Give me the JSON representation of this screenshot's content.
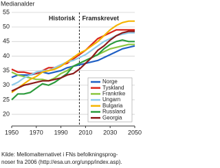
{
  "chart_data": {
    "type": "line",
    "y_label": "Medianalder",
    "annotations": [
      "Historisk",
      "Framskrevet"
    ],
    "divider_x": 2005,
    "caption": [
      "Kilde: Mellomalternativet i FNs befolkningsprog-",
      "noser fra 2006 (http://esa.un.org/unpp/index.asp)."
    ],
    "x": [
      1950,
      1955,
      1960,
      1965,
      1970,
      1975,
      1980,
      1985,
      1990,
      1995,
      2000,
      2005,
      2010,
      2015,
      2020,
      2025,
      2030,
      2035,
      2040,
      2045,
      2050
    ],
    "xlim": [
      1950,
      2050
    ],
    "xticks": [
      1950,
      1970,
      1990,
      2010,
      2030,
      2050
    ],
    "ylim": [
      16,
      55
    ],
    "yticks": [
      20,
      25,
      30,
      35,
      40,
      45,
      50,
      55
    ],
    "grid": true,
    "series": [
      {
        "name": "Norge",
        "color": "#1f5fc4",
        "values": [
          32.7,
          33.5,
          33.5,
          33.5,
          34,
          34.5,
          34,
          34.5,
          35,
          36,
          36.5,
          37,
          37.5,
          38,
          38.5,
          39.5,
          40.5,
          41.5,
          42.5,
          43,
          43.5
        ]
      },
      {
        "name": "Tyskland",
        "color": "#d9261c",
        "values": [
          35.5,
          34.5,
          34.5,
          34,
          34,
          35,
          36,
          36,
          37,
          37.5,
          39,
          40.5,
          42,
          44,
          46,
          47,
          48,
          49,
          49,
          49,
          49
        ]
      },
      {
        "name": "Frankrike",
        "color": "#8cc63f",
        "values": [
          34.5,
          33.5,
          33,
          32.5,
          32,
          32,
          31.5,
          32.5,
          34,
          35,
          36.5,
          37.5,
          38.5,
          39.5,
          40.5,
          41.5,
          42.5,
          43,
          43.5,
          44,
          44
        ]
      },
      {
        "name": "Ungarn",
        "color": "#8fcbea",
        "values": [
          30,
          31,
          32.5,
          33.5,
          34.5,
          35,
          35,
          36,
          37,
          38,
          38.5,
          39.5,
          40.5,
          42,
          43.5,
          45,
          46,
          47,
          47.5,
          48,
          48
        ]
      },
      {
        "name": "Bulgaria",
        "color": "#f5b400",
        "values": [
          27.5,
          29,
          30.5,
          32,
          33,
          34.5,
          35,
          35.5,
          36.5,
          38,
          39.5,
          41,
          42,
          43.5,
          45,
          47,
          49,
          50.5,
          51.5,
          52,
          52
        ]
      },
      {
        "name": "Russland",
        "color": "#2c9b3c",
        "values": [
          25,
          27,
          27,
          27.5,
          29,
          30.5,
          30,
          31,
          32.5,
          34,
          36.5,
          37.5,
          38.5,
          39.5,
          40.5,
          42.5,
          44,
          45,
          45.5,
          45,
          45
        ]
      },
      {
        "name": "Georgia",
        "color": "#8b1a1a",
        "values": [
          28,
          29,
          30,
          30.5,
          31,
          31.5,
          31.5,
          32,
          32.5,
          33.5,
          34,
          35.5,
          37.5,
          39.5,
          42,
          43.5,
          45.5,
          47,
          48,
          48.5,
          48.5
        ]
      }
    ]
  }
}
